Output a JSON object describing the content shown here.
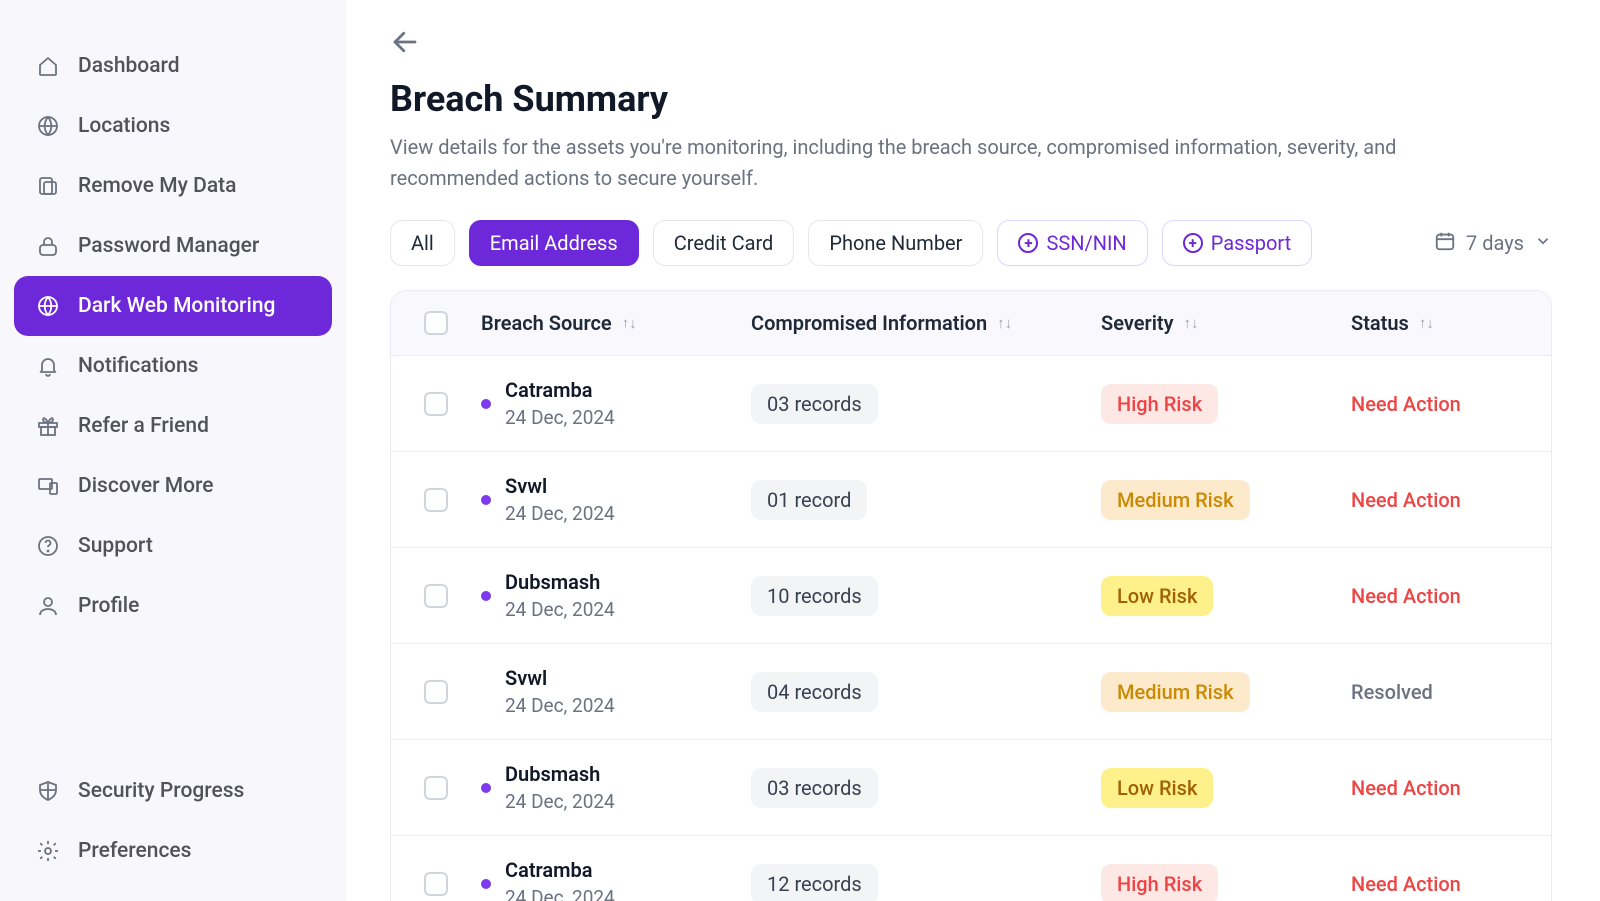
{
  "sidebar": {
    "top": [
      {
        "label": "Dashboard",
        "icon": "home",
        "active": false
      },
      {
        "label": "Locations",
        "icon": "globe",
        "active": false
      },
      {
        "label": "Remove My Data",
        "icon": "remove",
        "active": false
      },
      {
        "label": "Password Manager",
        "icon": "lock",
        "active": false
      },
      {
        "label": "Dark Web Monitoring",
        "icon": "globe",
        "active": true
      },
      {
        "label": "Notifications",
        "icon": "bell",
        "active": false
      },
      {
        "label": "Refer a Friend",
        "icon": "gift",
        "active": false
      },
      {
        "label": "Discover More",
        "icon": "devices",
        "active": false
      },
      {
        "label": "Support",
        "icon": "help",
        "active": false
      },
      {
        "label": "Profile",
        "icon": "user",
        "active": false
      }
    ],
    "bottom": [
      {
        "label": "Security Progress",
        "icon": "shield"
      },
      {
        "label": "Preferences",
        "icon": "gear"
      }
    ]
  },
  "page": {
    "title": "Breach Summary",
    "subtitle": "View details for the assets you're monitoring, including the breach source, compromised information, severity, and recommended actions to secure yourself."
  },
  "filters": {
    "chips": [
      {
        "label": "All",
        "active": false,
        "add": false
      },
      {
        "label": "Email Address",
        "active": true,
        "add": false
      },
      {
        "label": "Credit Card",
        "active": false,
        "add": false
      },
      {
        "label": "Phone Number",
        "active": false,
        "add": false
      },
      {
        "label": "SSN/NIN",
        "active": false,
        "add": true
      },
      {
        "label": "Passport",
        "active": false,
        "add": true
      }
    ],
    "date_range": "7 days"
  },
  "table": {
    "columns": {
      "source": "Breach Source",
      "compromised": "Compromised Information",
      "severity": "Severity",
      "status": "Status"
    },
    "rows": [
      {
        "dot": true,
        "name": "Catramba",
        "date": "24 Dec, 2024",
        "records": "03 records",
        "severity": "High Risk",
        "sev_class": "high",
        "status": "Need Action",
        "status_class": "need"
      },
      {
        "dot": true,
        "name": "Svwl",
        "date": "24 Dec, 2024",
        "records": "01 record",
        "severity": "Medium Risk",
        "sev_class": "medium",
        "status": "Need Action",
        "status_class": "need"
      },
      {
        "dot": true,
        "name": "Dubsmash",
        "date": "24 Dec, 2024",
        "records": "10 records",
        "severity": "Low Risk",
        "sev_class": "low",
        "status": "Need Action",
        "status_class": "need"
      },
      {
        "dot": false,
        "name": "Svwl",
        "date": "24 Dec, 2024",
        "records": "04 records",
        "severity": "Medium Risk",
        "sev_class": "medium",
        "status": "Resolved",
        "status_class": "resolved"
      },
      {
        "dot": true,
        "name": "Dubsmash",
        "date": "24 Dec, 2024",
        "records": "03 records",
        "severity": "Low Risk",
        "sev_class": "low",
        "status": "Need Action",
        "status_class": "need"
      },
      {
        "dot": true,
        "name": "Catramba",
        "date": "24 Dec, 2024",
        "records": "12 records",
        "severity": "High Risk",
        "sev_class": "high",
        "status": "Need Action",
        "status_class": "need"
      }
    ]
  },
  "colors": {
    "accent": "#6d28d9",
    "sidebar_bg": "#f8f8fc",
    "text_muted": "#6b7280",
    "sev_high_bg": "#fde8e6",
    "sev_high_fg": "#ef4444",
    "sev_medium_bg": "#fde9cc",
    "sev_medium_fg": "#ca8a04",
    "sev_low_bg": "#fef08a",
    "sev_low_fg": "#a16207",
    "status_need": "#ef4444",
    "status_resolved": "#6b7280"
  }
}
